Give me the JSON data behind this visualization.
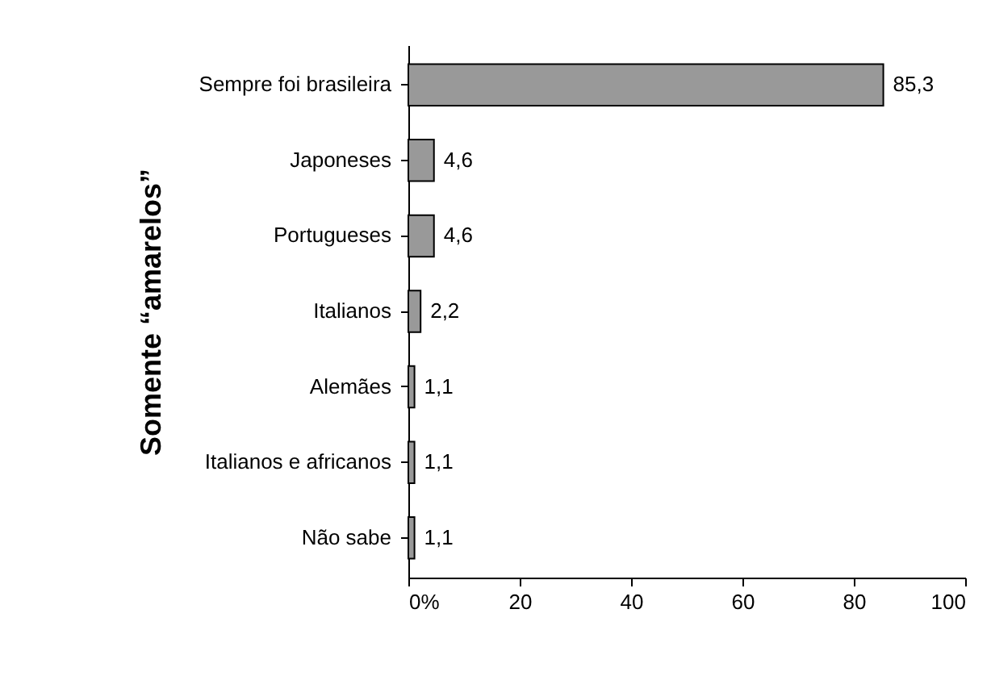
{
  "chart_data": {
    "type": "bar",
    "orientation": "horizontal",
    "ylabel": "Somente “amarelos”",
    "categories": [
      "Sempre foi brasileira",
      "Japoneses",
      "Portugueses",
      "Italianos",
      "Alemães",
      "Italianos e africanos",
      "Não sabe"
    ],
    "values": [
      85.3,
      4.6,
      4.6,
      2.2,
      1.1,
      1.1,
      1.1
    ],
    "value_labels": [
      "85,3",
      "4,6",
      "4,6",
      "2,2",
      "1,1",
      "1,1",
      "1,1"
    ],
    "color": "#999999",
    "xlim": [
      0,
      100
    ],
    "xticks": [
      {
        "value": 0,
        "label": "0%"
      },
      20,
      40,
      60,
      80,
      100
    ],
    "grid": false
  }
}
